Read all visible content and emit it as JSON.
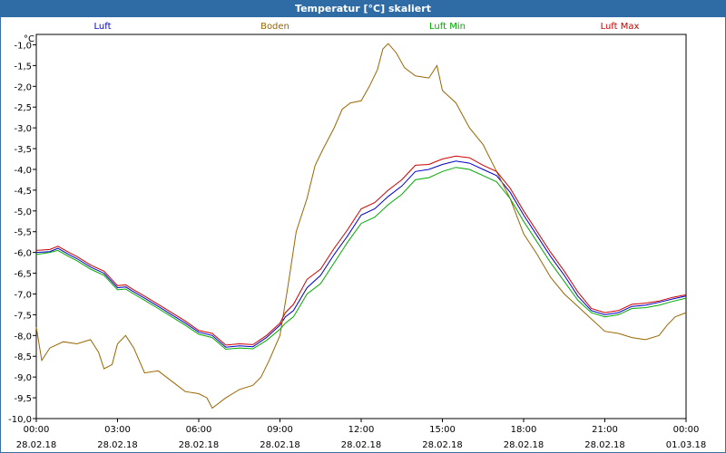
{
  "window": {
    "title": "Temperatur [°C] skaliert"
  },
  "chart_data": {
    "type": "line",
    "title": "Temperatur [°C] skaliert",
    "ylabel": "°C",
    "ylim": [
      -10.0,
      -0.75
    ],
    "xlim": [
      0,
      24
    ],
    "grid": true,
    "legend_position": "top",
    "y_ticks": [
      "-1,0",
      "-1,5",
      "-2,0",
      "-2,5",
      "-3,0",
      "-3,5",
      "-4,0",
      "-4,5",
      "-5,0",
      "-5,5",
      "-6,0",
      "-6,5",
      "-7,0",
      "-7,5",
      "-8,0",
      "-8,5",
      "-9,0",
      "-9,5",
      "-10,0"
    ],
    "x_ticks": [
      {
        "time": "00:00",
        "date": "28.02.18"
      },
      {
        "time": "03:00",
        "date": "28.02.18"
      },
      {
        "time": "06:00",
        "date": "28.02.18"
      },
      {
        "time": "09:00",
        "date": "28.02.18"
      },
      {
        "time": "12:00",
        "date": "28.02.18"
      },
      {
        "time": "15:00",
        "date": "28.02.18"
      },
      {
        "time": "18:00",
        "date": "28.02.18"
      },
      {
        "time": "21:00",
        "date": "28.02.18"
      },
      {
        "time": "00:00",
        "date": "01.03.18"
      }
    ],
    "series": [
      {
        "name": "Luft",
        "color": "#0000cc",
        "points": [
          [
            0,
            -6.0
          ],
          [
            0.5,
            -5.98
          ],
          [
            0.8,
            -5.9
          ],
          [
            1.2,
            -6.05
          ],
          [
            1.5,
            -6.15
          ],
          [
            2.0,
            -6.35
          ],
          [
            2.5,
            -6.5
          ],
          [
            3.0,
            -6.85
          ],
          [
            3.3,
            -6.83
          ],
          [
            3.6,
            -6.95
          ],
          [
            4.0,
            -7.1
          ],
          [
            4.5,
            -7.3
          ],
          [
            5.0,
            -7.5
          ],
          [
            5.5,
            -7.7
          ],
          [
            6.0,
            -7.92
          ],
          [
            6.5,
            -8.0
          ],
          [
            7.0,
            -8.28
          ],
          [
            7.5,
            -8.25
          ],
          [
            8.0,
            -8.27
          ],
          [
            8.5,
            -8.05
          ],
          [
            9.0,
            -7.75
          ],
          [
            9.2,
            -7.55
          ],
          [
            9.5,
            -7.4
          ],
          [
            10.0,
            -6.85
          ],
          [
            10.5,
            -6.55
          ],
          [
            11.0,
            -6.05
          ],
          [
            11.5,
            -5.6
          ],
          [
            12.0,
            -5.1
          ],
          [
            12.5,
            -4.95
          ],
          [
            13.0,
            -4.65
          ],
          [
            13.5,
            -4.4
          ],
          [
            14.0,
            -4.05
          ],
          [
            14.5,
            -4.0
          ],
          [
            15.0,
            -3.88
          ],
          [
            15.5,
            -3.8
          ],
          [
            16.0,
            -3.85
          ],
          [
            16.5,
            -4.0
          ],
          [
            17.0,
            -4.15
          ],
          [
            17.5,
            -4.55
          ],
          [
            18.0,
            -5.1
          ],
          [
            18.5,
            -5.6
          ],
          [
            19.0,
            -6.1
          ],
          [
            19.5,
            -6.55
          ],
          [
            20.0,
            -7.05
          ],
          [
            20.5,
            -7.4
          ],
          [
            21.0,
            -7.5
          ],
          [
            21.5,
            -7.45
          ],
          [
            22.0,
            -7.3
          ],
          [
            22.5,
            -7.27
          ],
          [
            23.0,
            -7.2
          ],
          [
            23.5,
            -7.12
          ],
          [
            24.0,
            -7.05
          ]
        ]
      },
      {
        "name": "Boden",
        "color": "#996600",
        "points": [
          [
            0,
            -7.8
          ],
          [
            0.2,
            -8.6
          ],
          [
            0.5,
            -8.3
          ],
          [
            1.0,
            -8.15
          ],
          [
            1.5,
            -8.2
          ],
          [
            2.0,
            -8.1
          ],
          [
            2.3,
            -8.4
          ],
          [
            2.5,
            -8.8
          ],
          [
            2.8,
            -8.7
          ],
          [
            3.0,
            -8.2
          ],
          [
            3.3,
            -8.0
          ],
          [
            3.6,
            -8.3
          ],
          [
            4.0,
            -8.9
          ],
          [
            4.5,
            -8.85
          ],
          [
            5.0,
            -9.1
          ],
          [
            5.5,
            -9.35
          ],
          [
            6.0,
            -9.4
          ],
          [
            6.3,
            -9.5
          ],
          [
            6.5,
            -9.75
          ],
          [
            7.0,
            -9.5
          ],
          [
            7.5,
            -9.3
          ],
          [
            8.0,
            -9.2
          ],
          [
            8.3,
            -9.0
          ],
          [
            8.6,
            -8.6
          ],
          [
            9.0,
            -8.0
          ],
          [
            9.3,
            -6.8
          ],
          [
            9.6,
            -5.5
          ],
          [
            10.0,
            -4.7
          ],
          [
            10.3,
            -3.9
          ],
          [
            10.6,
            -3.5
          ],
          [
            11.0,
            -3.0
          ],
          [
            11.3,
            -2.55
          ],
          [
            11.6,
            -2.4
          ],
          [
            12.0,
            -2.35
          ],
          [
            12.3,
            -2.0
          ],
          [
            12.6,
            -1.6
          ],
          [
            12.8,
            -1.1
          ],
          [
            13.0,
            -0.97
          ],
          [
            13.3,
            -1.2
          ],
          [
            13.6,
            -1.55
          ],
          [
            14.0,
            -1.75
          ],
          [
            14.5,
            -1.8
          ],
          [
            14.8,
            -1.5
          ],
          [
            15.0,
            -2.1
          ],
          [
            15.5,
            -2.4
          ],
          [
            16.0,
            -3.0
          ],
          [
            16.5,
            -3.4
          ],
          [
            17.0,
            -4.05
          ],
          [
            17.5,
            -4.7
          ],
          [
            18.0,
            -5.55
          ],
          [
            18.5,
            -6.05
          ],
          [
            19.0,
            -6.6
          ],
          [
            19.5,
            -7.0
          ],
          [
            20.0,
            -7.3
          ],
          [
            20.5,
            -7.6
          ],
          [
            21.0,
            -7.9
          ],
          [
            21.5,
            -7.95
          ],
          [
            22.0,
            -8.05
          ],
          [
            22.5,
            -8.1
          ],
          [
            23.0,
            -8.0
          ],
          [
            23.3,
            -7.75
          ],
          [
            23.6,
            -7.55
          ],
          [
            24.0,
            -7.45
          ]
        ]
      },
      {
        "name": "Luft Min",
        "color": "#00aa00",
        "points": [
          [
            0,
            -6.05
          ],
          [
            0.5,
            -6.0
          ],
          [
            0.8,
            -5.95
          ],
          [
            1.2,
            -6.1
          ],
          [
            1.5,
            -6.2
          ],
          [
            2.0,
            -6.4
          ],
          [
            2.5,
            -6.55
          ],
          [
            3.0,
            -6.9
          ],
          [
            3.3,
            -6.88
          ],
          [
            3.6,
            -7.0
          ],
          [
            4.0,
            -7.15
          ],
          [
            4.5,
            -7.35
          ],
          [
            5.0,
            -7.55
          ],
          [
            5.5,
            -7.75
          ],
          [
            6.0,
            -7.97
          ],
          [
            6.5,
            -8.05
          ],
          [
            7.0,
            -8.33
          ],
          [
            7.5,
            -8.3
          ],
          [
            8.0,
            -8.32
          ],
          [
            8.5,
            -8.12
          ],
          [
            9.0,
            -7.85
          ],
          [
            9.2,
            -7.7
          ],
          [
            9.5,
            -7.55
          ],
          [
            10.0,
            -7.0
          ],
          [
            10.5,
            -6.75
          ],
          [
            11.0,
            -6.25
          ],
          [
            11.5,
            -5.75
          ],
          [
            12.0,
            -5.3
          ],
          [
            12.5,
            -5.15
          ],
          [
            13.0,
            -4.85
          ],
          [
            13.5,
            -4.6
          ],
          [
            14.0,
            -4.25
          ],
          [
            14.5,
            -4.2
          ],
          [
            15.0,
            -4.05
          ],
          [
            15.5,
            -3.95
          ],
          [
            16.0,
            -4.0
          ],
          [
            16.5,
            -4.15
          ],
          [
            17.0,
            -4.3
          ],
          [
            17.5,
            -4.7
          ],
          [
            18.0,
            -5.25
          ],
          [
            18.5,
            -5.75
          ],
          [
            19.0,
            -6.25
          ],
          [
            19.5,
            -6.7
          ],
          [
            20.0,
            -7.15
          ],
          [
            20.5,
            -7.45
          ],
          [
            21.0,
            -7.55
          ],
          [
            21.5,
            -7.5
          ],
          [
            22.0,
            -7.35
          ],
          [
            22.5,
            -7.33
          ],
          [
            23.0,
            -7.27
          ],
          [
            23.5,
            -7.18
          ],
          [
            24.0,
            -7.1
          ]
        ]
      },
      {
        "name": "Luft Max",
        "color": "#cc0000",
        "points": [
          [
            0,
            -5.95
          ],
          [
            0.5,
            -5.93
          ],
          [
            0.8,
            -5.85
          ],
          [
            1.2,
            -6.0
          ],
          [
            1.5,
            -6.1
          ],
          [
            2.0,
            -6.3
          ],
          [
            2.5,
            -6.45
          ],
          [
            3.0,
            -6.8
          ],
          [
            3.3,
            -6.78
          ],
          [
            3.6,
            -6.9
          ],
          [
            4.0,
            -7.05
          ],
          [
            4.5,
            -7.25
          ],
          [
            5.0,
            -7.45
          ],
          [
            5.5,
            -7.65
          ],
          [
            6.0,
            -7.88
          ],
          [
            6.5,
            -7.95
          ],
          [
            7.0,
            -8.23
          ],
          [
            7.5,
            -8.2
          ],
          [
            8.0,
            -8.22
          ],
          [
            8.5,
            -8.0
          ],
          [
            9.0,
            -7.7
          ],
          [
            9.2,
            -7.45
          ],
          [
            9.5,
            -7.25
          ],
          [
            10.0,
            -6.65
          ],
          [
            10.5,
            -6.4
          ],
          [
            11.0,
            -5.9
          ],
          [
            11.5,
            -5.45
          ],
          [
            12.0,
            -4.95
          ],
          [
            12.5,
            -4.8
          ],
          [
            13.0,
            -4.5
          ],
          [
            13.5,
            -4.25
          ],
          [
            14.0,
            -3.9
          ],
          [
            14.5,
            -3.88
          ],
          [
            15.0,
            -3.75
          ],
          [
            15.5,
            -3.68
          ],
          [
            16.0,
            -3.72
          ],
          [
            16.5,
            -3.9
          ],
          [
            17.0,
            -4.05
          ],
          [
            17.5,
            -4.45
          ],
          [
            18.0,
            -5.0
          ],
          [
            18.5,
            -5.5
          ],
          [
            19.0,
            -6.0
          ],
          [
            19.5,
            -6.45
          ],
          [
            20.0,
            -6.95
          ],
          [
            20.5,
            -7.35
          ],
          [
            21.0,
            -7.45
          ],
          [
            21.5,
            -7.4
          ],
          [
            22.0,
            -7.25
          ],
          [
            22.5,
            -7.22
          ],
          [
            23.0,
            -7.17
          ],
          [
            23.5,
            -7.08
          ],
          [
            24.0,
            -7.02
          ]
        ]
      }
    ]
  }
}
